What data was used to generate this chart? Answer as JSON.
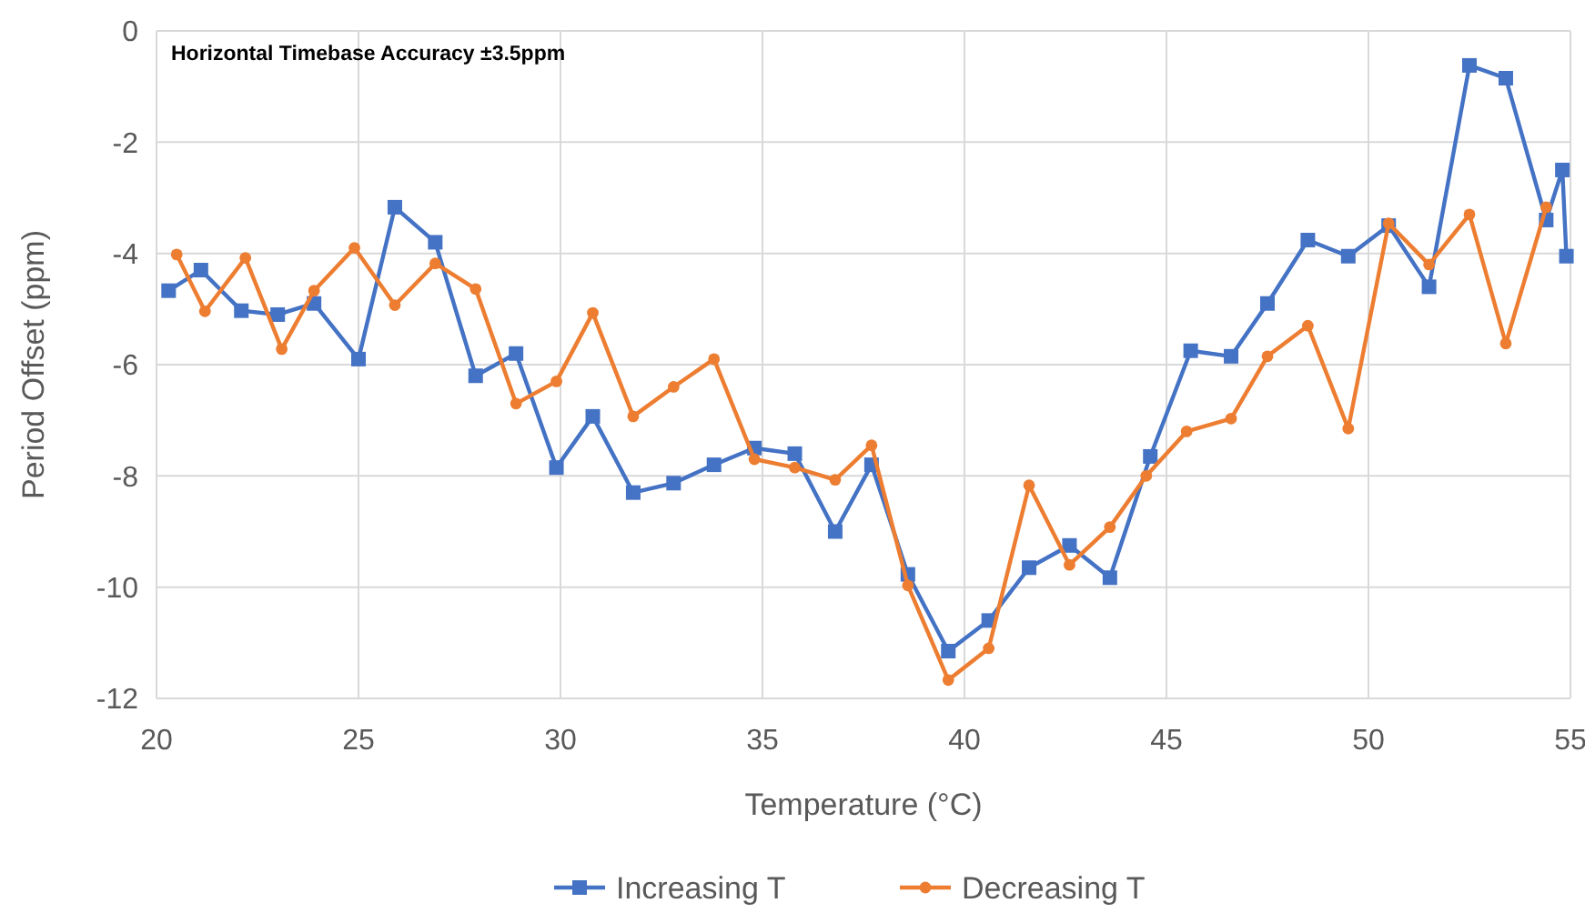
{
  "chart_data": {
    "type": "line",
    "xlabel": "Temperature (°C)",
    "ylabel": "Period Offset (ppm)",
    "annotations": [
      "Horizontal Timebase Accuracy ±3.5ppm"
    ],
    "xlim": [
      20,
      55
    ],
    "xticks": [
      20,
      25,
      30,
      35,
      40,
      45,
      50,
      55
    ],
    "ylim": [
      -12,
      0
    ],
    "yticks": [
      -12,
      -10,
      -8,
      -6,
      -4,
      -2,
      0
    ],
    "grid": true,
    "legend": "bottom",
    "line_style": "solid",
    "series": [
      {
        "name": "Increasing T",
        "color": "#4472c4",
        "marker": "square",
        "x": [
          20.3,
          21.1,
          22.1,
          23.0,
          23.9,
          25.0,
          25.9,
          26.9,
          27.9,
          28.9,
          29.9,
          30.8,
          31.8,
          32.8,
          33.8,
          34.8,
          35.8,
          36.8,
          37.7,
          38.6,
          39.6,
          40.6,
          41.6,
          42.6,
          43.6,
          44.6,
          45.6,
          46.6,
          47.5,
          48.5,
          49.5,
          50.5,
          51.5,
          52.5,
          53.4,
          54.4,
          54.8,
          54.9
        ],
        "values": [
          -4.67,
          -4.3,
          -5.03,
          -5.1,
          -4.9,
          -5.9,
          -3.17,
          -3.8,
          -6.2,
          -5.8,
          -7.85,
          -6.93,
          -8.3,
          -8.13,
          -7.8,
          -7.5,
          -7.6,
          -9.0,
          -7.8,
          -9.77,
          -11.15,
          -10.6,
          -9.65,
          -9.25,
          -9.83,
          -7.65,
          -5.75,
          -5.85,
          -4.9,
          -3.76,
          -4.05,
          -3.5,
          -4.6,
          -0.62,
          -0.85,
          -3.4,
          -2.5,
          -4.05
        ]
      },
      {
        "name": "Decreasing T",
        "color": "#ed7d31",
        "marker": "circle",
        "x": [
          20.5,
          21.2,
          22.2,
          23.1,
          23.9,
          24.9,
          25.9,
          26.9,
          27.9,
          28.9,
          29.9,
          30.8,
          31.8,
          32.8,
          33.8,
          34.8,
          35.8,
          36.8,
          37.7,
          38.6,
          39.6,
          40.6,
          41.6,
          42.6,
          43.6,
          44.5,
          45.5,
          46.6,
          47.5,
          48.5,
          49.5,
          50.5,
          51.5,
          52.5,
          53.4,
          54.4
        ],
        "values": [
          -4.02,
          -5.04,
          -4.08,
          -5.72,
          -4.67,
          -3.9,
          -4.93,
          -4.18,
          -4.64,
          -6.7,
          -6.3,
          -5.07,
          -6.93,
          -6.4,
          -5.9,
          -7.7,
          -7.85,
          -8.07,
          -7.45,
          -9.97,
          -11.67,
          -11.1,
          -8.17,
          -9.6,
          -8.92,
          -8.0,
          -7.2,
          -6.97,
          -5.85,
          -5.3,
          -7.15,
          -3.46,
          -4.2,
          -3.3,
          -5.62,
          -3.17
        ]
      }
    ]
  }
}
